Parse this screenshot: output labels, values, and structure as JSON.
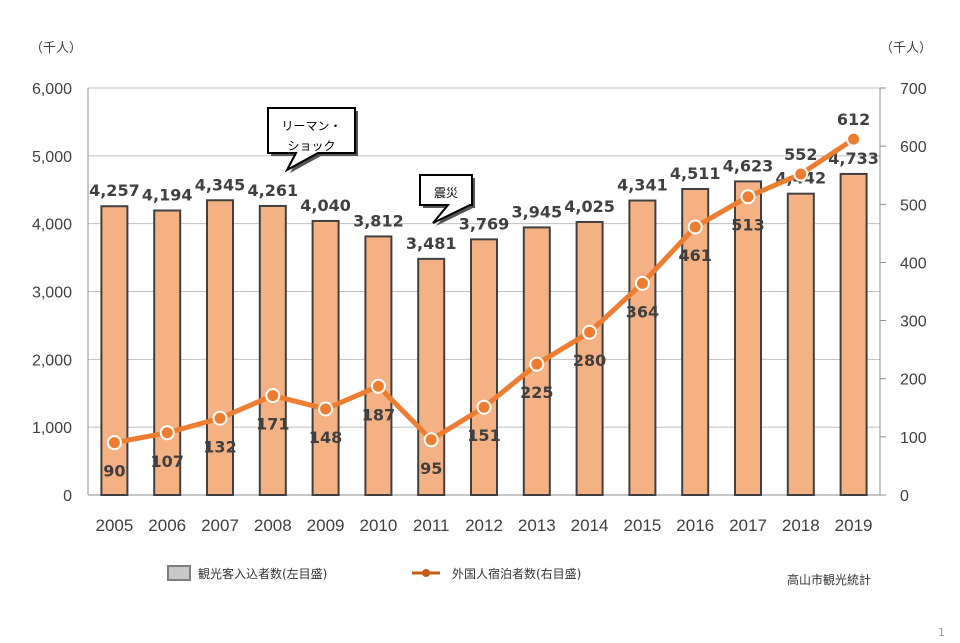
{
  "chart_data": {
    "type": "bar+line",
    "categories": [
      "2005",
      "2006",
      "2007",
      "2008",
      "2009",
      "2010",
      "2011",
      "2012",
      "2013",
      "2014",
      "2015",
      "2016",
      "2017",
      "2018",
      "2019"
    ],
    "series": [
      {
        "name": "観光客入込者数(左目盛)",
        "type": "bar",
        "axis": "left",
        "color": "#F4B183",
        "values": [
          4257,
          4194,
          4345,
          4261,
          4040,
          3812,
          3481,
          3769,
          3945,
          4025,
          4341,
          4511,
          4623,
          4442,
          4733
        ],
        "labels": [
          "4,257",
          "4,194",
          "4,345",
          "4,261",
          "4,040",
          "3,812",
          "3,481",
          "3,769",
          "3,945",
          "4,025",
          "4,341",
          "4,511",
          "4,623",
          "4,442",
          "4,733"
        ]
      },
      {
        "name": "外国人宿泊者数(右目盛)",
        "type": "line",
        "axis": "right",
        "color": "#ED7D31",
        "values": [
          90,
          107,
          132,
          171,
          148,
          187,
          95,
          151,
          225,
          280,
          364,
          461,
          513,
          552,
          612
        ]
      }
    ],
    "left_axis": {
      "unit": "（千人）",
      "ylim": [
        0,
        6000
      ],
      "ticks": [
        "0",
        "1,000",
        "2,000",
        "3,000",
        "4,000",
        "5,000",
        "6,000"
      ]
    },
    "right_axis": {
      "unit": "（千人）",
      "ylim": [
        0,
        700
      ],
      "ticks": [
        "0",
        "100",
        "200",
        "300",
        "400",
        "500",
        "600",
        "700"
      ]
    },
    "grid": true,
    "legend_placement": "bottom",
    "annotations": [
      {
        "text_lines": [
          "リーマン・",
          "ショック"
        ],
        "category": "2008"
      },
      {
        "text_lines": [
          "震災"
        ],
        "category": "2011"
      }
    ],
    "source": "高山市観光統計"
  },
  "page_number": "1"
}
